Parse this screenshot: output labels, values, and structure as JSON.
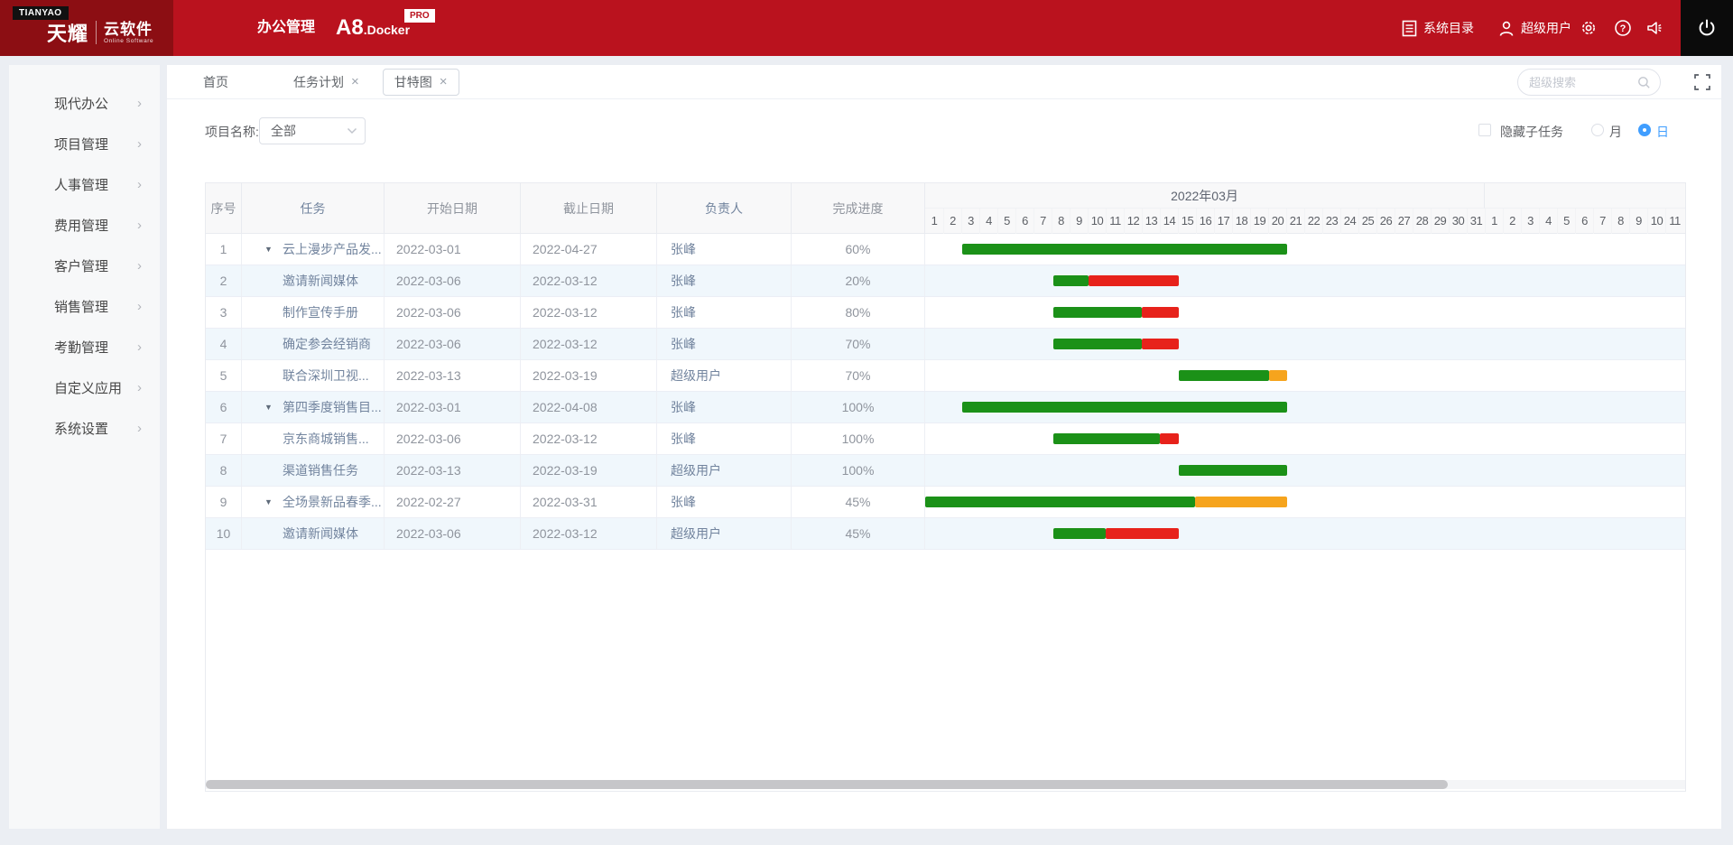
{
  "colors": {
    "header_red": "#ba121e",
    "logo_red": "#8c0e13",
    "page_bg": "#ebeef3",
    "sidebar_bg": "#f7f8f9",
    "stripe_bg": "#f0f7fc",
    "accent_blue": "#409eff",
    "bar_green": "#1b9118",
    "bar_red": "#e7221b",
    "bar_orange": "#f6a41d"
  },
  "header": {
    "logo": {
      "badge": "TIANYAO",
      "brand_primary": "天耀",
      "brand_secondary": "云软件",
      "brand_sub": "Online Software"
    },
    "nav_office": "办公管理",
    "product": {
      "primary": "A8",
      "secondary": ".Docker",
      "badge": "PRO"
    },
    "right": {
      "catalog_label": "系统目录",
      "user_label": "超级用户",
      "help_glyph": "?"
    }
  },
  "sidebar": {
    "items": [
      {
        "id": "modern-office",
        "label": "现代办公",
        "chevron": "›"
      },
      {
        "id": "project-mgmt",
        "label": "项目管理",
        "chevron": "›"
      },
      {
        "id": "hr-mgmt",
        "label": "人事管理",
        "chevron": "›"
      },
      {
        "id": "expense-mgmt",
        "label": "费用管理",
        "chevron": "›"
      },
      {
        "id": "customer-mgmt",
        "label": "客户管理",
        "chevron": "›"
      },
      {
        "id": "sales-mgmt",
        "label": "销售管理",
        "chevron": "›"
      },
      {
        "id": "attendance-mgmt",
        "label": "考勤管理",
        "chevron": "›"
      },
      {
        "id": "custom-app",
        "label": "自定义应用",
        "chevron": "›"
      },
      {
        "id": "system-settings",
        "label": "系统设置",
        "chevron": "›"
      }
    ]
  },
  "tabs": {
    "home": "首页",
    "items": [
      {
        "id": "task-plan",
        "label": "任务计划",
        "close": "×",
        "active": false
      },
      {
        "id": "gantt",
        "label": "甘特图",
        "close": "×",
        "active": true
      }
    ]
  },
  "toolbar": {
    "search_placeholder": "超级搜索"
  },
  "filter": {
    "project_label": "项目名称:",
    "project_value": "全部",
    "hide_subtask_label": "隐藏子任务",
    "month_label": "月",
    "day_label": "日"
  },
  "table": {
    "columns": [
      "序号",
      "任务",
      "开始日期",
      "截止日期",
      "负责人",
      "完成进度"
    ],
    "expand_glyph": "▼",
    "rows": [
      {
        "seq": "1",
        "parent": true,
        "task": "云上漫步产品发...",
        "start": "2022-03-01",
        "end": "2022-04-27",
        "owner": "张峰",
        "progress": "60%",
        "bars": [
          [
            "g",
            41,
            360
          ]
        ]
      },
      {
        "seq": "2",
        "parent": false,
        "task": "邀请新闻媒体",
        "start": "2022-03-06",
        "end": "2022-03-12",
        "owner": "张峰",
        "progress": "20%",
        "bars": [
          [
            "g",
            142,
            39
          ],
          [
            "r",
            181,
            100
          ]
        ]
      },
      {
        "seq": "3",
        "parent": false,
        "task": "制作宣传手册",
        "start": "2022-03-06",
        "end": "2022-03-12",
        "owner": "张峰",
        "progress": "80%",
        "bars": [
          [
            "g",
            142,
            98
          ],
          [
            "r",
            240,
            41
          ]
        ]
      },
      {
        "seq": "4",
        "parent": false,
        "task": "确定参会经销商",
        "start": "2022-03-06",
        "end": "2022-03-12",
        "owner": "张峰",
        "progress": "70%",
        "bars": [
          [
            "g",
            142,
            98
          ],
          [
            "r",
            240,
            41
          ]
        ]
      },
      {
        "seq": "5",
        "parent": false,
        "task": "联合深圳卫视...",
        "start": "2022-03-13",
        "end": "2022-03-19",
        "owner": "超级用户",
        "progress": "70%",
        "bars": [
          [
            "g",
            281,
            100
          ],
          [
            "o",
            381,
            20
          ]
        ]
      },
      {
        "seq": "6",
        "parent": true,
        "task": "第四季度销售目...",
        "start": "2022-03-01",
        "end": "2022-04-08",
        "owner": "张峰",
        "progress": "100%",
        "bars": [
          [
            "g",
            41,
            360
          ]
        ]
      },
      {
        "seq": "7",
        "parent": false,
        "task": "京东商城销售...",
        "start": "2022-03-06",
        "end": "2022-03-12",
        "owner": "张峰",
        "progress": "100%",
        "bars": [
          [
            "g",
            142,
            118
          ],
          [
            "r",
            260,
            21
          ]
        ]
      },
      {
        "seq": "8",
        "parent": false,
        "task": "渠道销售任务",
        "start": "2022-03-13",
        "end": "2022-03-19",
        "owner": "超级用户",
        "progress": "100%",
        "bars": [
          [
            "g",
            281,
            120
          ]
        ]
      },
      {
        "seq": "9",
        "parent": true,
        "task": "全场景新品春季...",
        "start": "2022-02-27",
        "end": "2022-03-31",
        "owner": "张峰",
        "progress": "45%",
        "bars": [
          [
            "g",
            0,
            299
          ],
          [
            "o",
            299,
            102
          ]
        ]
      },
      {
        "seq": "10",
        "parent": false,
        "task": "邀请新闻媒体",
        "start": "2022-03-06",
        "end": "2022-03-12",
        "owner": "超级用户",
        "progress": "45%",
        "bars": [
          [
            "g",
            142,
            58
          ],
          [
            "r",
            200,
            81
          ]
        ]
      }
    ]
  },
  "gantt": {
    "month_label": "2022年03月",
    "day_width": 20,
    "march_days": [
      1,
      2,
      3,
      4,
      5,
      6,
      7,
      8,
      9,
      10,
      11,
      12,
      13,
      14,
      15,
      16,
      17,
      18,
      19,
      20,
      21,
      22,
      23,
      24,
      25,
      26,
      27,
      28,
      29,
      30,
      31
    ],
    "april_days": [
      1,
      2,
      3,
      4,
      5,
      6,
      7,
      8,
      9,
      10,
      11
    ]
  }
}
